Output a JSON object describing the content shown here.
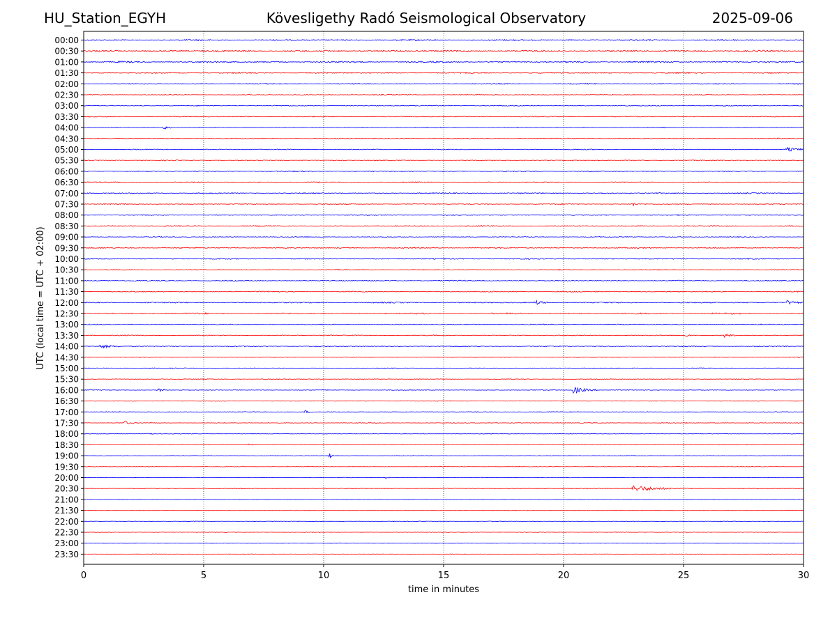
{
  "header": {
    "station": "HU_Station_EGYH",
    "title": "Kövesligethy Radó Seismological Observatory",
    "date": "2025-09-06"
  },
  "chart_data": {
    "type": "line",
    "xlabel": "time in minutes",
    "ylabel": "UTC (local time = UTC + 02:00)",
    "xlim": [
      0,
      30
    ],
    "x_ticks": [
      "0",
      "5",
      "10",
      "15",
      "20",
      "25",
      "30"
    ],
    "grid": "vertical dotted lines at 5-minute intervals",
    "colors": {
      "even_rows": "#0000ff",
      "odd_rows": "#ff0000"
    },
    "rows": [
      "00:00",
      "00:30",
      "01:00",
      "01:30",
      "02:00",
      "02:30",
      "03:00",
      "03:30",
      "04:00",
      "04:30",
      "05:00",
      "05:30",
      "06:00",
      "06:30",
      "07:00",
      "07:30",
      "08:00",
      "08:30",
      "09:00",
      "09:30",
      "10:00",
      "10:30",
      "11:00",
      "11:30",
      "12:00",
      "12:30",
      "13:00",
      "13:30",
      "14:00",
      "14:30",
      "15:00",
      "15:30",
      "16:00",
      "16:30",
      "17:00",
      "17:30",
      "18:00",
      "18:30",
      "19:00",
      "19:30",
      "20:00",
      "20:30",
      "21:00",
      "21:30",
      "22:00",
      "22:30",
      "23:00",
      "23:30"
    ],
    "noise_level": [
      0.8,
      0.9,
      0.8,
      0.7,
      0.6,
      0.5,
      0.5,
      0.5,
      0.5,
      0.5,
      0.5,
      0.5,
      0.6,
      0.6,
      0.6,
      0.5,
      0.5,
      0.6,
      0.5,
      0.6,
      0.6,
      0.5,
      0.6,
      0.6,
      0.7,
      0.8,
      0.5,
      0.5,
      0.5,
      0.4,
      0.4,
      0.4,
      0.4,
      0.3,
      0.4,
      0.4,
      0.3,
      0.3,
      0.3,
      0.3,
      0.3,
      0.3,
      0.3,
      0.3,
      0.3,
      0.3,
      0.3,
      0.3
    ],
    "events": [
      {
        "row": "04:00",
        "minute": 3.3,
        "amplitude": 3,
        "duration": 0.4
      },
      {
        "row": "05:00",
        "minute": 29.3,
        "amplitude": 3,
        "duration": 0.7
      },
      {
        "row": "07:30",
        "minute": 22.9,
        "amplitude": 3,
        "duration": 0.2
      },
      {
        "row": "12:00",
        "minute": 18.8,
        "amplitude": 3,
        "duration": 0.6
      },
      {
        "row": "12:00",
        "minute": 29.3,
        "amplitude": 3,
        "duration": 0.7
      },
      {
        "row": "13:30",
        "minute": 25.1,
        "amplitude": 3,
        "duration": 0.2
      },
      {
        "row": "13:30",
        "minute": 26.7,
        "amplitude": 2.5,
        "duration": 0.5
      },
      {
        "row": "14:00",
        "minute": 0.7,
        "amplitude": 2.5,
        "duration": 0.8
      },
      {
        "row": "16:00",
        "minute": 3.1,
        "amplitude": 3,
        "duration": 0.3
      },
      {
        "row": "16:00",
        "minute": 20.4,
        "amplitude": 5,
        "duration": 1.0
      },
      {
        "row": "17:00",
        "minute": 9.2,
        "amplitude": 2.5,
        "duration": 0.3
      },
      {
        "row": "17:30",
        "minute": 1.7,
        "amplitude": 3,
        "duration": 0.4
      },
      {
        "row": "18:00",
        "minute": 2.6,
        "amplitude": 3,
        "duration": 0.3
      },
      {
        "row": "18:30",
        "minute": 6.8,
        "amplitude": 2,
        "duration": 0.3
      },
      {
        "row": "19:00",
        "minute": 10.25,
        "amplitude": 5,
        "duration": 0.15
      },
      {
        "row": "20:00",
        "minute": 12.6,
        "amplitude": 2,
        "duration": 0.2
      },
      {
        "row": "20:30",
        "minute": 22.9,
        "amplitude": 5,
        "duration": 1.6
      }
    ]
  }
}
